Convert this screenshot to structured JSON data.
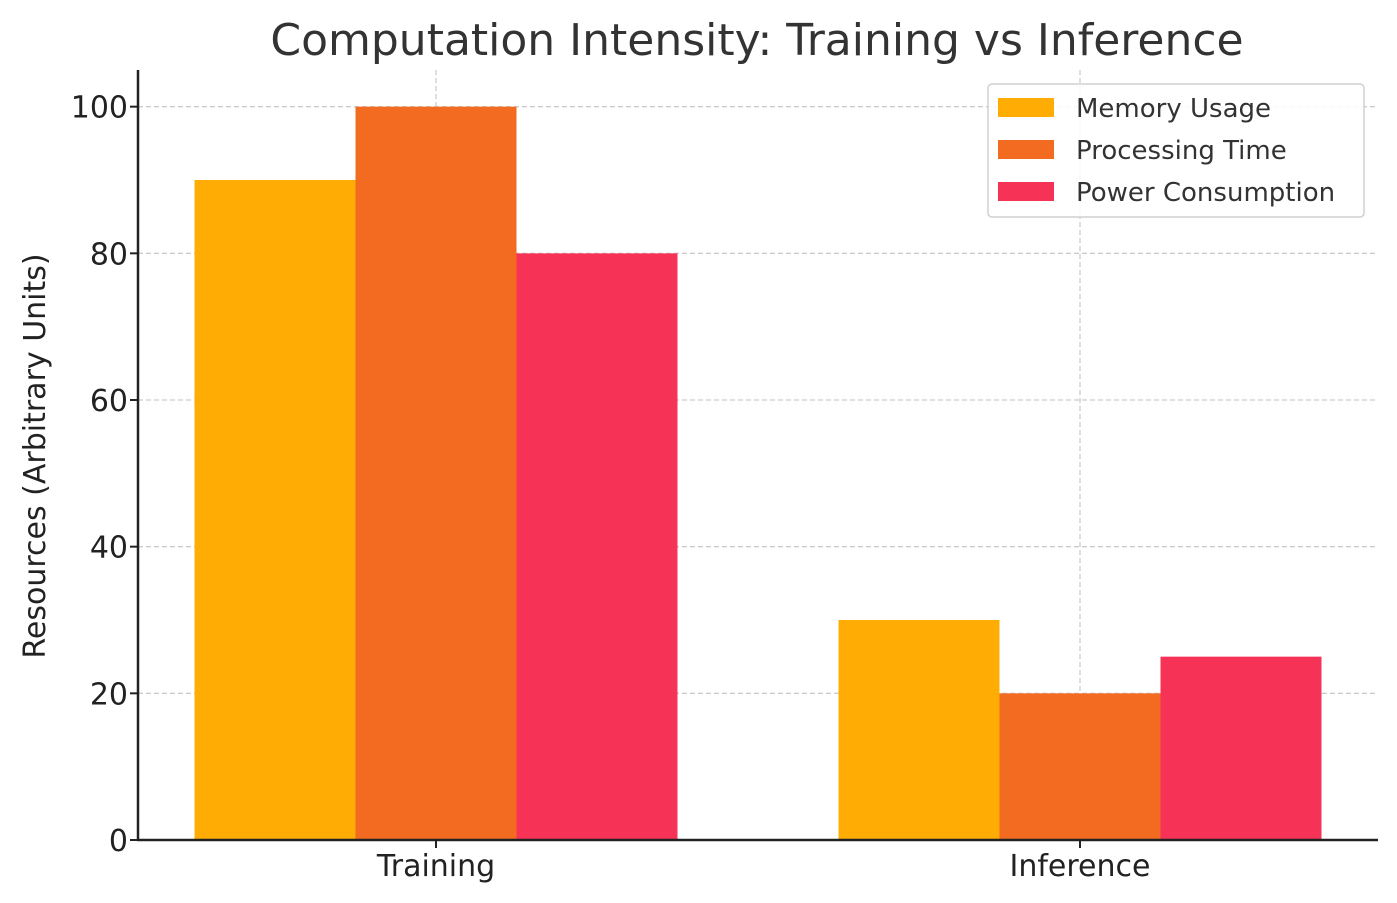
{
  "chart_data": {
    "type": "bar",
    "title": "Computation Intensity: Training vs Inference",
    "xlabel": "",
    "ylabel": "Resources (Arbitrary Units)",
    "categories": [
      "Training",
      "Inference"
    ],
    "series": [
      {
        "name": "Memory Usage",
        "color": "#FFAD05",
        "values": [
          90,
          30
        ]
      },
      {
        "name": "Processing Time",
        "color": "#F26B21",
        "values": [
          100,
          20
        ]
      },
      {
        "name": "Power Consumption",
        "color": "#F63357",
        "values": [
          80,
          25
        ]
      }
    ],
    "ylim": [
      0,
      105
    ],
    "yticks": [
      0,
      20,
      40,
      60,
      80,
      100
    ],
    "grid": true,
    "legend_position": "top-right"
  }
}
